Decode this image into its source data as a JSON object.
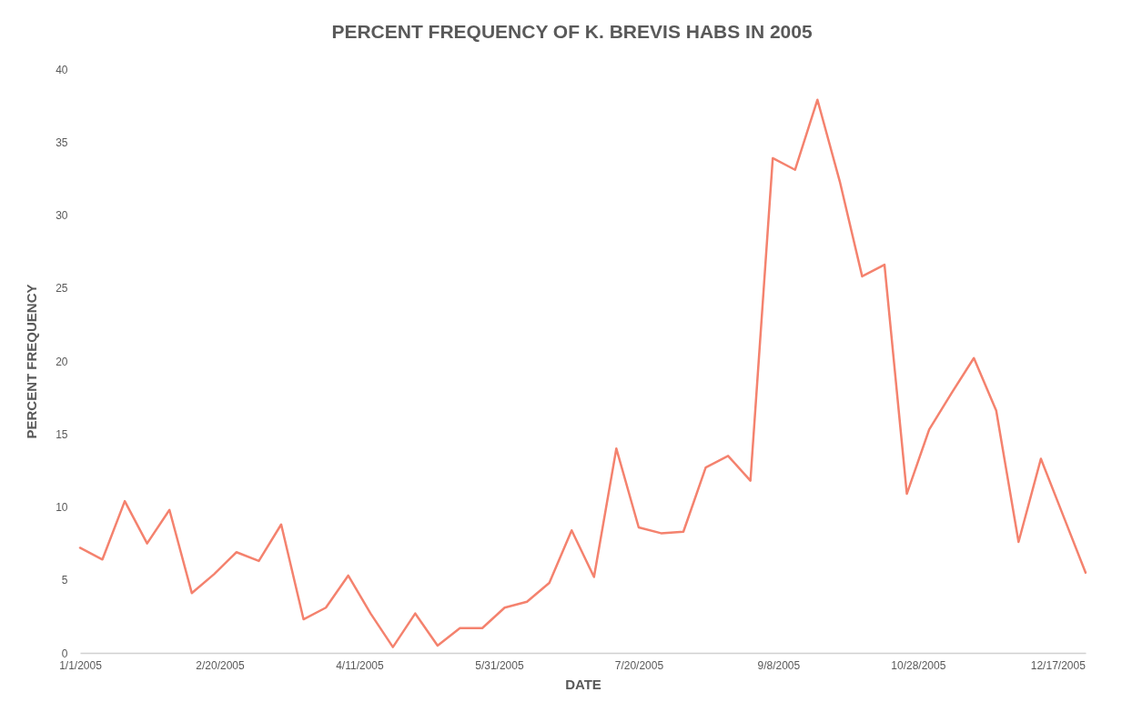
{
  "chart_data": {
    "type": "line",
    "title": "PERCENT FREQUENCY OF K. BREVIS HABS IN 2005",
    "xlabel": "DATE",
    "ylabel": "PERCENT FREQUENCY",
    "x": [
      "2005-01-01",
      "2005-01-09",
      "2005-01-17",
      "2005-01-25",
      "2005-02-02",
      "2005-02-10",
      "2005-02-18",
      "2005-02-26",
      "2005-03-06",
      "2005-03-14",
      "2005-03-22",
      "2005-03-30",
      "2005-04-07",
      "2005-04-15",
      "2005-04-23",
      "2005-05-01",
      "2005-05-09",
      "2005-05-17",
      "2005-05-25",
      "2005-06-02",
      "2005-06-10",
      "2005-06-18",
      "2005-06-26",
      "2005-07-04",
      "2005-07-12",
      "2005-07-20",
      "2005-07-28",
      "2005-08-05",
      "2005-08-13",
      "2005-08-21",
      "2005-08-29",
      "2005-09-06",
      "2005-09-14",
      "2005-09-22",
      "2005-09-30",
      "2005-10-08",
      "2005-10-16",
      "2005-10-24",
      "2005-11-01",
      "2005-11-09",
      "2005-11-17",
      "2005-11-25",
      "2005-12-03",
      "2005-12-11",
      "2005-12-19",
      "2005-12-27"
    ],
    "series": [
      {
        "color": "#f4826e",
        "values": [
          7.2,
          6.4,
          10.4,
          7.5,
          9.8,
          4.1,
          5.4,
          6.9,
          6.3,
          8.8,
          2.3,
          3.1,
          5.3,
          2.7,
          0.4,
          2.7,
          0.5,
          1.7,
          1.7,
          3.1,
          3.5,
          4.8,
          8.4,
          5.2,
          14.0,
          8.6,
          8.2,
          8.3,
          12.7,
          13.5,
          11.8,
          33.9,
          33.1,
          37.9,
          32.3,
          25.8,
          26.6,
          10.9,
          15.3,
          17.8,
          20.2,
          16.6,
          7.6,
          13.3,
          9.4,
          5.5
        ]
      }
    ],
    "xlim": [
      "2005-01-01",
      "2005-12-27"
    ],
    "xticks": [
      {
        "value": "2005-01-01",
        "label": "1/1/2005"
      },
      {
        "value": "2005-02-20",
        "label": "2/20/2005"
      },
      {
        "value": "2005-04-11",
        "label": "4/11/2005"
      },
      {
        "value": "2005-05-31",
        "label": "5/31/2005"
      },
      {
        "value": "2005-07-20",
        "label": "7/20/2005"
      },
      {
        "value": "2005-09-08",
        "label": "9/8/2005"
      },
      {
        "value": "2005-10-28",
        "label": "10/28/2005"
      },
      {
        "value": "2005-12-17",
        "label": "12/17/2005"
      }
    ],
    "ylim": [
      0,
      40
    ],
    "yticks": [
      0,
      5,
      10,
      15,
      20,
      25,
      30,
      35,
      40
    ],
    "grid": false,
    "marker": "none",
    "line_style": "solid"
  }
}
